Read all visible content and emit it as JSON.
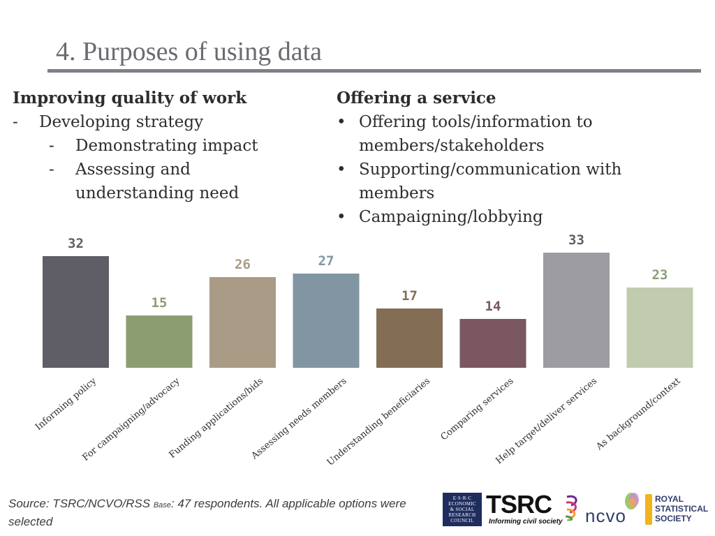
{
  "slide": {
    "title": "4. Purposes of using data"
  },
  "left": {
    "heading": "Improving quality of work",
    "items": [
      {
        "marker": "-",
        "text": "Developing strategy"
      },
      {
        "marker": "-",
        "text": "Demonstrating impact"
      },
      {
        "marker": "-",
        "text": "Assessing and understanding need"
      }
    ]
  },
  "right": {
    "heading": "Offering a service",
    "items": [
      {
        "marker": "•",
        "text": "Offering tools/information to members/stakeholders"
      },
      {
        "marker": "•",
        "text": "Supporting/communication with members"
      },
      {
        "marker": "•",
        "text": "Campaigning/lobbying"
      }
    ]
  },
  "chart_data": {
    "type": "bar",
    "title": "",
    "xlabel": "",
    "ylabel": "",
    "ylim": [
      0,
      36
    ],
    "grid": false,
    "legend": "none",
    "categories": [
      "Informing policy",
      "For campaigning/advocacy",
      "Funding applications/bids",
      "Assessing needs members",
      "Understanding beneficiaries",
      "Comparing services",
      "Help target/deliver services",
      "As background/context"
    ],
    "values": [
      32,
      15,
      26,
      27,
      17,
      14,
      33,
      23
    ],
    "colors": [
      "#5f5e66",
      "#8c9d72",
      "#a99b85",
      "#8196a2",
      "#836e55",
      "#7b5762",
      "#9d9ca2",
      "#c1cbae"
    ],
    "label_colors": [
      "#5f5e66",
      "#8c9d72",
      "#a99b85",
      "#8196a2",
      "#836e55",
      "#7b5762",
      "#5f5e66",
      "#8c9d72"
    ]
  },
  "footer": {
    "source_main": "Source: TSRC/NCVO/RSS ",
    "source_base": "Base",
    "source_rest": ": 47 respondents. All applicable options were selected"
  },
  "logos": {
    "esrc_lines": [
      "E·S·R·C",
      "ECONOMIC",
      "& SOCIAL",
      "RESEARCH",
      "COUNCIL"
    ],
    "tsrc_word": "TSRC",
    "tsrc_tagline": "Informing civil society",
    "ncvo_word": "ncvo",
    "rss_line1": "ROYAL",
    "rss_line2": "STATISTICAL",
    "rss_line3": "SOCIETY",
    "colors": {
      "esrc": "#1e2c5e",
      "ncvo": "#2f3d6b",
      "rss_badge": "#f0b41c"
    }
  }
}
